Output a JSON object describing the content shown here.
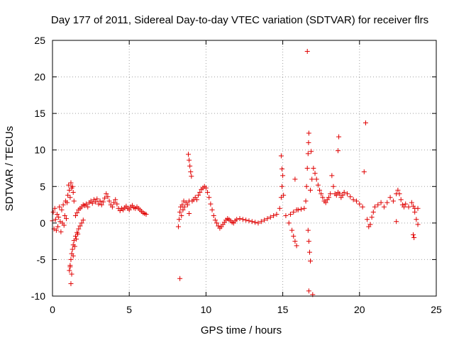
{
  "chart_data": {
    "type": "scatter",
    "title": "Day 177 of 2011, Sidereal Day-to-day VTEC variation (SDTVAR) for receiver flrs",
    "xlabel": "GPS time / hours",
    "ylabel": "SDTVAR / TECUs",
    "xlim": [
      0,
      25
    ],
    "ylim": [
      -10,
      25
    ],
    "xticks": [
      0,
      5,
      10,
      15,
      20,
      25
    ],
    "yticks": [
      -10,
      -5,
      0,
      5,
      10,
      15,
      20,
      25
    ],
    "xtick_labels": [
      "0",
      "5",
      "10",
      "15",
      "20",
      "25"
    ],
    "ytick_labels": [
      "-10",
      "-5",
      "0",
      "5",
      "10",
      "15",
      "20",
      "25"
    ],
    "grid": true,
    "marker": "+",
    "color": "#e00000",
    "series": [
      {
        "name": "SDTVAR",
        "points": [
          [
            0.0,
            0.3
          ],
          [
            0.05,
            1.5
          ],
          [
            0.1,
            -0.8
          ],
          [
            0.15,
            2.0
          ],
          [
            0.2,
            0.5
          ],
          [
            0.25,
            -1.0
          ],
          [
            0.3,
            1.2
          ],
          [
            0.35,
            -0.5
          ],
          [
            0.4,
            0.8
          ],
          [
            0.45,
            2.2
          ],
          [
            0.5,
            0.2
          ],
          [
            0.55,
            -1.2
          ],
          [
            0.6,
            1.8
          ],
          [
            0.65,
            0.0
          ],
          [
            0.7,
            2.5
          ],
          [
            0.75,
            -0.3
          ],
          [
            0.8,
            1.0
          ],
          [
            0.85,
            3.0
          ],
          [
            0.9,
            0.6
          ],
          [
            0.95,
            2.8
          ],
          [
            1.0,
            3.8
          ],
          [
            1.05,
            5.2
          ],
          [
            1.1,
            4.5
          ],
          [
            1.15,
            3.5
          ],
          [
            1.2,
            5.5
          ],
          [
            1.25,
            4.8
          ],
          [
            1.3,
            5.0
          ],
          [
            1.35,
            4.2
          ],
          [
            1.4,
            3.0
          ],
          [
            1.1,
            -6.5
          ],
          [
            1.15,
            -5.8
          ],
          [
            1.2,
            -5.0
          ],
          [
            1.25,
            -4.2
          ],
          [
            1.3,
            -3.6
          ],
          [
            1.35,
            -3.0
          ],
          [
            1.4,
            -2.4
          ],
          [
            1.5,
            -1.8
          ],
          [
            1.6,
            -1.3
          ],
          [
            1.7,
            -0.8
          ],
          [
            1.8,
            -0.4
          ],
          [
            1.9,
            0.0
          ],
          [
            2.0,
            0.4
          ],
          [
            1.2,
            -8.3
          ],
          [
            1.25,
            -7.0
          ],
          [
            1.15,
            -6.0
          ],
          [
            1.35,
            -4.5
          ],
          [
            1.45,
            -3.2
          ],
          [
            1.55,
            -2.2
          ],
          [
            1.65,
            -1.5
          ],
          [
            1.5,
            1.0
          ],
          [
            1.6,
            1.4
          ],
          [
            1.7,
            1.8
          ],
          [
            1.8,
            2.0
          ],
          [
            1.9,
            2.2
          ],
          [
            2.0,
            2.5
          ],
          [
            2.1,
            2.4
          ],
          [
            2.2,
            2.6
          ],
          [
            2.3,
            2.2
          ],
          [
            2.4,
            2.8
          ],
          [
            2.5,
            3.0
          ],
          [
            2.6,
            2.7
          ],
          [
            2.7,
            3.2
          ],
          [
            2.8,
            2.9
          ],
          [
            2.9,
            3.3
          ],
          [
            3.0,
            2.6
          ],
          [
            3.1,
            3.0
          ],
          [
            3.2,
            2.5
          ],
          [
            3.3,
            2.9
          ],
          [
            3.4,
            3.4
          ],
          [
            3.5,
            4.0
          ],
          [
            3.6,
            3.6
          ],
          [
            3.7,
            3.0
          ],
          [
            3.8,
            2.5
          ],
          [
            3.9,
            2.2
          ],
          [
            4.0,
            2.8
          ],
          [
            4.1,
            3.2
          ],
          [
            4.2,
            2.6
          ],
          [
            4.3,
            2.0
          ],
          [
            4.4,
            1.7
          ],
          [
            4.5,
            2.0
          ],
          [
            4.6,
            1.8
          ],
          [
            4.7,
            2.1
          ],
          [
            4.8,
            2.3
          ],
          [
            4.9,
            2.0
          ],
          [
            5.0,
            1.8
          ],
          [
            5.1,
            2.2
          ],
          [
            5.2,
            2.4
          ],
          [
            5.3,
            2.1
          ],
          [
            5.4,
            2.0
          ],
          [
            5.5,
            2.2
          ],
          [
            5.6,
            2.0
          ],
          [
            5.7,
            1.8
          ],
          [
            5.8,
            1.6
          ],
          [
            5.9,
            1.4
          ],
          [
            6.0,
            1.3
          ],
          [
            6.1,
            1.2
          ],
          [
            8.2,
            -0.5
          ],
          [
            8.25,
            0.5
          ],
          [
            8.3,
            1.5
          ],
          [
            8.35,
            2.2
          ],
          [
            8.4,
            1.0
          ],
          [
            8.45,
            2.5
          ],
          [
            8.5,
            1.8
          ],
          [
            8.55,
            3.0
          ],
          [
            8.6,
            2.2
          ],
          [
            8.7,
            2.8
          ],
          [
            8.8,
            2.5
          ],
          [
            8.9,
            3.0
          ],
          [
            8.85,
            9.4
          ],
          [
            8.9,
            8.6
          ],
          [
            8.95,
            7.8
          ],
          [
            9.0,
            7.0
          ],
          [
            9.05,
            6.4
          ],
          [
            8.9,
            1.3
          ],
          [
            8.3,
            -7.6
          ],
          [
            9.1,
            3.0
          ],
          [
            9.2,
            3.2
          ],
          [
            9.3,
            3.5
          ],
          [
            9.4,
            3.2
          ],
          [
            9.5,
            3.8
          ],
          [
            9.6,
            4.2
          ],
          [
            9.7,
            4.6
          ],
          [
            9.8,
            4.8
          ],
          [
            9.9,
            5.0
          ],
          [
            10.0,
            4.8
          ],
          [
            10.1,
            4.2
          ],
          [
            10.2,
            3.5
          ],
          [
            10.3,
            2.6
          ],
          [
            10.4,
            1.8
          ],
          [
            10.5,
            1.0
          ],
          [
            10.6,
            0.4
          ],
          [
            10.7,
            0.0
          ],
          [
            10.8,
            -0.4
          ],
          [
            10.9,
            -0.7
          ],
          [
            11.0,
            -0.5
          ],
          [
            11.1,
            -0.2
          ],
          [
            11.2,
            0.1
          ],
          [
            11.3,
            0.4
          ],
          [
            11.4,
            0.6
          ],
          [
            11.5,
            0.5
          ],
          [
            11.6,
            0.3
          ],
          [
            11.7,
            0.1
          ],
          [
            11.8,
            0.0
          ],
          [
            11.9,
            0.3
          ],
          [
            12.0,
            0.5
          ],
          [
            12.2,
            0.6
          ],
          [
            12.4,
            0.5
          ],
          [
            12.6,
            0.4
          ],
          [
            12.8,
            0.3
          ],
          [
            13.0,
            0.2
          ],
          [
            13.2,
            0.1
          ],
          [
            13.4,
            0.0
          ],
          [
            13.6,
            0.2
          ],
          [
            13.8,
            0.4
          ],
          [
            14.0,
            0.6
          ],
          [
            14.2,
            0.8
          ],
          [
            14.4,
            1.0
          ],
          [
            14.6,
            1.2
          ],
          [
            14.8,
            2.0
          ],
          [
            14.9,
            3.5
          ],
          [
            14.95,
            5.0
          ],
          [
            15.0,
            6.5
          ],
          [
            14.95,
            7.4
          ],
          [
            14.9,
            9.2
          ],
          [
            15.05,
            3.8
          ],
          [
            15.2,
            1.0
          ],
          [
            15.4,
            0.0
          ],
          [
            15.6,
            -1.0
          ],
          [
            15.7,
            -1.8
          ],
          [
            15.8,
            -2.5
          ],
          [
            15.9,
            -3.1
          ],
          [
            15.5,
            1.2
          ],
          [
            15.7,
            1.5
          ],
          [
            15.9,
            1.8
          ],
          [
            15.8,
            6.0
          ],
          [
            16.0,
            1.8
          ],
          [
            16.2,
            1.9
          ],
          [
            16.4,
            2.0
          ],
          [
            16.5,
            3.0
          ],
          [
            16.55,
            5.0
          ],
          [
            16.6,
            7.5
          ],
          [
            16.65,
            9.5
          ],
          [
            16.68,
            11.0
          ],
          [
            16.7,
            12.3
          ],
          [
            16.6,
            23.5
          ],
          [
            16.65,
            -1.0
          ],
          [
            16.7,
            -2.5
          ],
          [
            16.75,
            -4.0
          ],
          [
            16.8,
            -5.2
          ],
          [
            16.7,
            -9.3
          ],
          [
            16.95,
            -9.8
          ],
          [
            16.85,
            9.8
          ],
          [
            16.8,
            4.5
          ],
          [
            16.9,
            6.0
          ],
          [
            17.0,
            7.5
          ],
          [
            17.1,
            6.8
          ],
          [
            17.2,
            6.0
          ],
          [
            17.3,
            5.2
          ],
          [
            17.4,
            4.5
          ],
          [
            17.5,
            4.0
          ],
          [
            17.6,
            3.5
          ],
          [
            17.7,
            3.0
          ],
          [
            17.8,
            2.8
          ],
          [
            17.9,
            3.2
          ],
          [
            18.0,
            3.5
          ],
          [
            18.1,
            4.0
          ],
          [
            18.2,
            6.5
          ],
          [
            18.3,
            5.0
          ],
          [
            18.4,
            4.0
          ],
          [
            18.5,
            3.8
          ],
          [
            18.6,
            4.2
          ],
          [
            18.65,
            11.8
          ],
          [
            18.6,
            9.9
          ],
          [
            18.7,
            4.0
          ],
          [
            18.8,
            3.5
          ],
          [
            18.9,
            3.8
          ],
          [
            19.0,
            4.2
          ],
          [
            19.2,
            4.0
          ],
          [
            19.4,
            3.6
          ],
          [
            19.6,
            3.2
          ],
          [
            19.8,
            3.0
          ],
          [
            20.0,
            2.6
          ],
          [
            20.2,
            2.2
          ],
          [
            20.3,
            7.0
          ],
          [
            20.4,
            13.7
          ],
          [
            20.5,
            0.5
          ],
          [
            20.6,
            -0.5
          ],
          [
            20.7,
            -0.2
          ],
          [
            20.8,
            0.8
          ],
          [
            20.9,
            1.5
          ],
          [
            21.0,
            2.2
          ],
          [
            21.2,
            2.5
          ],
          [
            21.4,
            2.8
          ],
          [
            21.6,
            2.2
          ],
          [
            21.8,
            2.8
          ],
          [
            22.0,
            3.5
          ],
          [
            22.2,
            3.0
          ],
          [
            22.4,
            4.0
          ],
          [
            22.5,
            4.5
          ],
          [
            22.6,
            4.0
          ],
          [
            22.7,
            3.2
          ],
          [
            22.8,
            2.5
          ],
          [
            22.9,
            2.2
          ],
          [
            22.4,
            0.2
          ],
          [
            23.0,
            2.6
          ],
          [
            23.2,
            2.2
          ],
          [
            23.4,
            2.8
          ],
          [
            23.5,
            2.3
          ],
          [
            23.6,
            2.0
          ],
          [
            23.7,
            0.5
          ],
          [
            23.8,
            -0.2
          ],
          [
            23.5,
            -1.6
          ],
          [
            23.55,
            -2.0
          ],
          [
            23.6,
            1.5
          ],
          [
            23.8,
            2.0
          ]
        ]
      }
    ]
  }
}
